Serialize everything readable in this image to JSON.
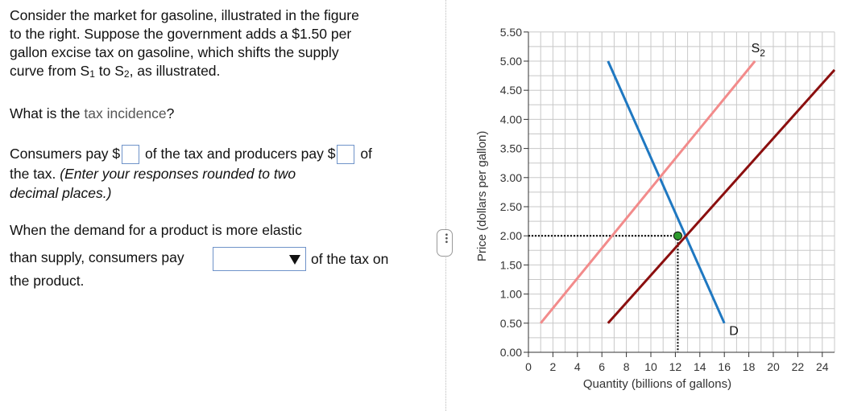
{
  "question": {
    "intro_a": "Consider the market for gasoline, illustrated in the figure",
    "intro_b": "to the right. Suppose the government adds a $1.50 per",
    "intro_c": "gallon excise tax on gasoline, which shifts the supply",
    "intro_d1": "curve from S",
    "intro_d_sub1": "1",
    "intro_d2": " to S",
    "intro_d_sub2": "2",
    "intro_d3": ", as illustrated.",
    "incidence_prompt_a": "What is the ",
    "incidence_link": "tax incidence",
    "incidence_prompt_b": "?",
    "consumers_pay": "Consumers pay $",
    "of_tax_producers": "of the tax and producers pay $",
    "of_text": "of",
    "the_tax": "the tax.",
    "instruction": "(Enter your responses rounded to two",
    "instruction2": "decimal places.)",
    "elastic_line": "When the demand for a product is more elastic",
    "than_supply": "than supply, consumers pay",
    "of_tax_on": "of the tax on",
    "the_product": "the product."
  },
  "chart_data": {
    "type": "line",
    "xlabel": "Quantity (billions of gallons)",
    "ylabel": "Price (dollars per gallon)",
    "xlim": [
      0,
      25
    ],
    "ylim": [
      0,
      5.5
    ],
    "x_ticks": [
      "0",
      "2",
      "4",
      "6",
      "8",
      "10",
      "12",
      "14",
      "16",
      "18",
      "20",
      "22",
      "24"
    ],
    "y_ticks": [
      "0.00",
      "0.50",
      "1.00",
      "1.50",
      "2.00",
      "2.50",
      "3.00",
      "3.50",
      "4.00",
      "4.50",
      "5.00",
      "5.50"
    ],
    "grid": true,
    "series": [
      {
        "name": "D",
        "color": "#1f78c1",
        "points": [
          [
            6.5,
            5.0
          ],
          [
            16,
            0.5
          ]
        ]
      },
      {
        "name": "S",
        "color": "#8b0f0f",
        "points": [
          [
            6.5,
            0.5
          ],
          [
            25,
            4.85
          ]
        ]
      },
      {
        "name": "S2",
        "color": "#f28b8b",
        "points": [
          [
            1,
            0.5
          ],
          [
            18.5,
            5.0
          ]
        ]
      }
    ],
    "equilibrium": {
      "x": 12.2,
      "y": 2.0,
      "color": "#2e9a2e"
    },
    "labels": [
      {
        "text": "S",
        "sub": "2",
        "x": 18.2,
        "y": 5.15
      },
      {
        "text": "D",
        "x": 16.4,
        "y": 0.3
      }
    ]
  }
}
